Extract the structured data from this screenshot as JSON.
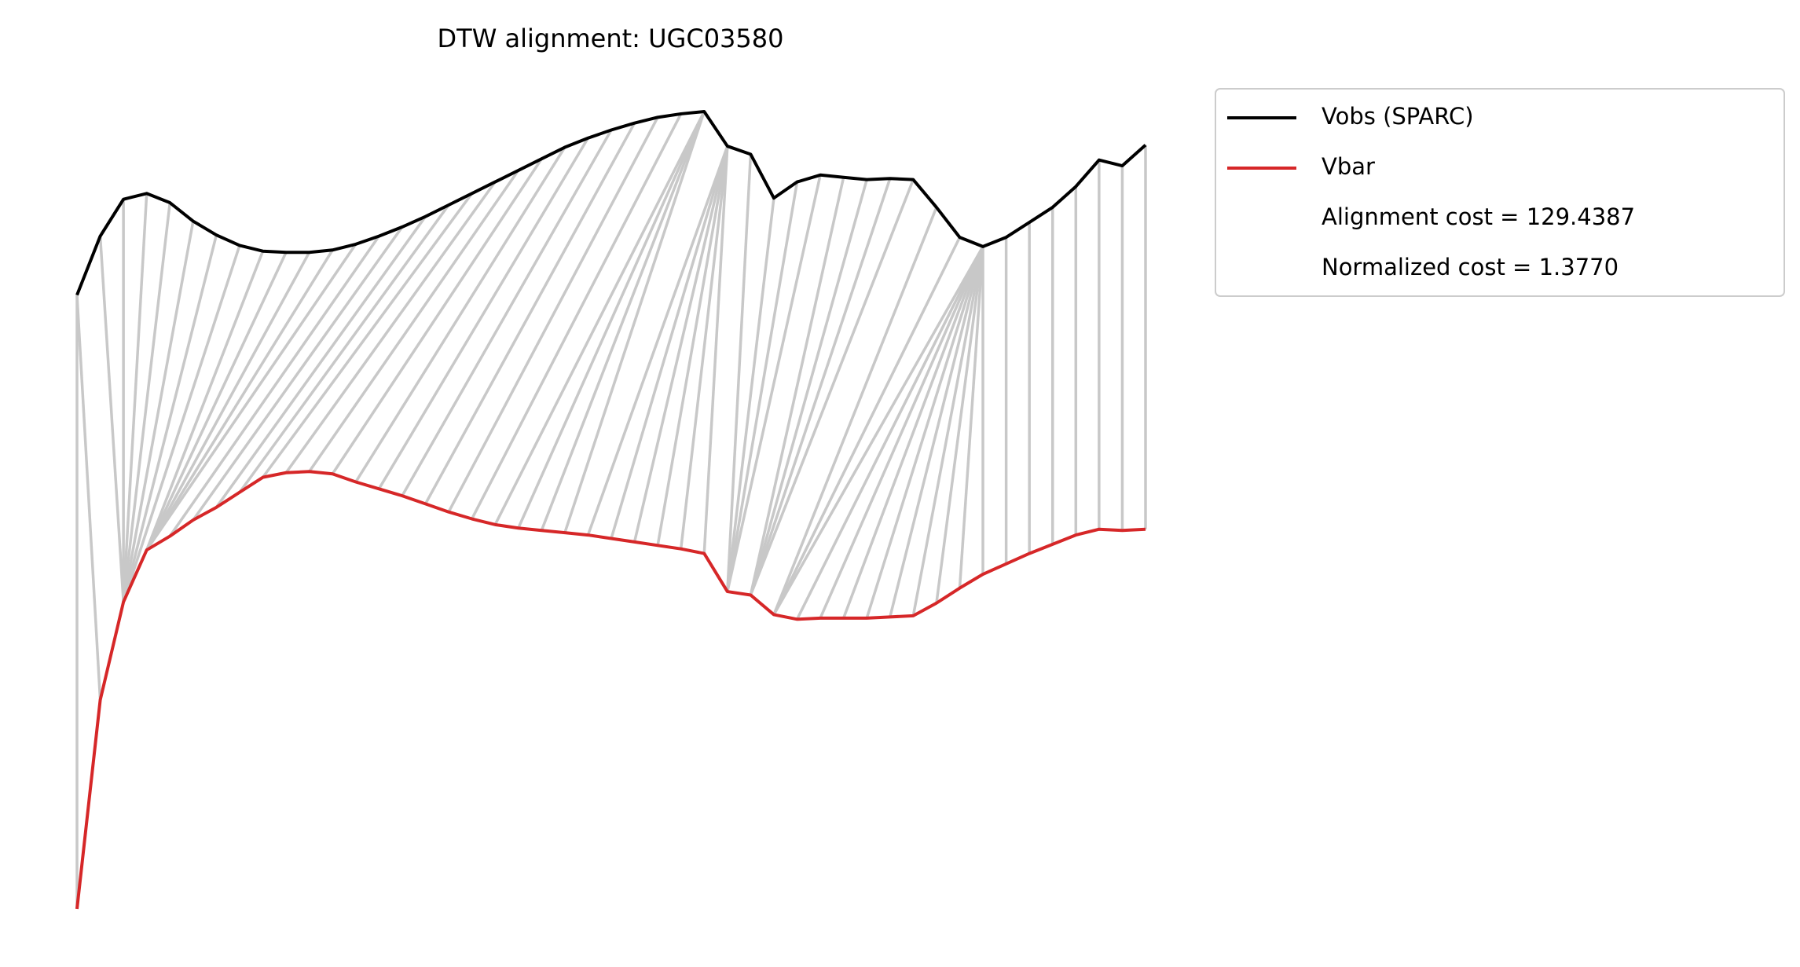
{
  "chart_data": {
    "type": "alignment",
    "title": "DTW alignment: UGC03580",
    "x": [
      0,
      1,
      2,
      3,
      4,
      5,
      6,
      7,
      8,
      9,
      10,
      11,
      12,
      13,
      14,
      15,
      16,
      17,
      18,
      19,
      20,
      21,
      22,
      23,
      24,
      25,
      26,
      27,
      28,
      29,
      30,
      31,
      32,
      33,
      34,
      35,
      36,
      37,
      38,
      39,
      40,
      41,
      42,
      43,
      44,
      45,
      46
    ],
    "series": [
      {
        "name": "Vobs (SPARC)",
        "color": "#000000",
        "values": [
          54.4,
          59.5,
          62.7,
          63.2,
          62.4,
          60.8,
          59.6,
          58.7,
          58.2,
          58.1,
          58.1,
          58.3,
          58.8,
          59.5,
          60.3,
          61.2,
          62.2,
          63.2,
          64.2,
          65.2,
          66.2,
          67.2,
          68,
          68.7,
          69.3,
          69.8,
          70.1,
          70.3,
          67.3,
          66.6,
          62.8,
          64.2,
          64.8,
          64.6,
          64.4,
          64.5,
          64.4,
          62,
          59.4,
          58.6,
          59.4,
          60.7,
          62,
          63.8,
          66.1,
          65.6,
          67.4
        ]
      },
      {
        "name": "Vbar",
        "color": "#d62728",
        "values": [
          1.2,
          19.3,
          27.8,
          32.3,
          33.5,
          34.9,
          36,
          37.3,
          38.6,
          39,
          39.1,
          38.9,
          38.2,
          37.6,
          37,
          36.3,
          35.6,
          35,
          34.5,
          34.2,
          34,
          33.8,
          33.6,
          33.3,
          33,
          32.7,
          32.4,
          32,
          28.7,
          28.4,
          26.7,
          26.3,
          26.4,
          26.4,
          26.4,
          26.5,
          26.6,
          27.7,
          29,
          30.2,
          31.1,
          32,
          32.8,
          33.6,
          34.1,
          34,
          34.1
        ]
      }
    ],
    "alignment": {
      "color": "#c8c8c8",
      "obs_index": [
        0,
        0,
        1,
        2,
        3,
        4,
        5,
        6,
        7,
        8,
        9,
        10,
        11,
        12,
        13,
        14,
        15,
        16,
        17,
        18,
        19,
        20,
        21,
        22,
        23,
        24,
        25,
        26,
        27,
        27,
        27,
        27,
        28,
        28,
        28,
        28,
        28,
        28,
        29,
        30,
        31,
        32,
        33,
        34,
        35,
        36,
        37,
        38,
        39,
        39,
        39,
        39,
        39,
        39,
        39,
        39,
        39,
        39,
        40,
        41,
        42,
        43,
        44,
        45,
        46
      ],
      "bar_index": [
        0,
        1,
        2,
        2,
        2,
        2,
        2,
        2,
        2,
        3,
        3,
        3,
        3,
        3,
        4,
        5,
        6,
        7,
        8,
        9,
        10,
        11,
        12,
        13,
        14,
        15,
        16,
        17,
        18,
        19,
        20,
        21,
        22,
        23,
        24,
        25,
        26,
        27,
        28,
        28,
        28,
        28,
        29,
        29,
        29,
        29,
        30,
        30,
        30,
        31,
        32,
        33,
        34,
        35,
        36,
        37,
        38,
        39,
        40,
        41,
        42,
        43,
        44,
        45,
        46
      ]
    },
    "annotations": [
      "Alignment cost = 129.4387",
      "Normalized cost = 1.3770"
    ],
    "legend": "upper right outside"
  }
}
